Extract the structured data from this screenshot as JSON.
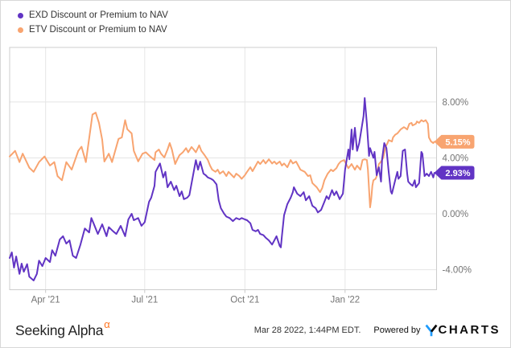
{
  "legend": {
    "items": [
      {
        "id": "exd",
        "label": "EXD Discount or Premium to NAV",
        "color": "#6134C4"
      },
      {
        "id": "etv",
        "label": "ETV Discount or Premium to NAV",
        "color": "#F8A470"
      }
    ]
  },
  "footer": {
    "brand": "Seeking Alpha",
    "brand_alpha": "α",
    "timestamp": "Mar 28 2022, 1:44PM EDT.",
    "powered_by": "Powered by",
    "provider": "YCHARTS",
    "provider_wordmark": "CHARTS",
    "provider_accent_color": "#1E9BFC"
  },
  "chart_data": {
    "type": "line",
    "title": "",
    "grid": true,
    "legend_position": "top-left",
    "x_axis": {
      "start_date": "2021-02-27",
      "end_date": "2022-03-26",
      "total_days": 392,
      "ticks": [
        {
          "label": "Apr '21",
          "day": 33
        },
        {
          "label": "Jul '21",
          "day": 124
        },
        {
          "label": "Oct '21",
          "day": 216
        },
        {
          "label": "Jan '22",
          "day": 308
        }
      ]
    },
    "y_axis": {
      "unit": "percent",
      "view_max": 11.9,
      "view_min": -5.43,
      "ticks": [
        {
          "label": "8.00%",
          "value": 8
        },
        {
          "label": "4.00%",
          "value": 4
        },
        {
          "label": "0.00%",
          "value": 0
        },
        {
          "label": "-4.00%",
          "value": -4
        }
      ]
    },
    "series": [
      {
        "id": "exd",
        "name": "EXD Discount or Premium to NAV",
        "color": "#6134C4",
        "last_value": 2.93,
        "last_value_label": "2.93%",
        "days": [
          0,
          2,
          4,
          6,
          9,
          11,
          13,
          16,
          18,
          22,
          25,
          27,
          30,
          33,
          37,
          39,
          42,
          46,
          49,
          52,
          55,
          58,
          61,
          65,
          69,
          73,
          75,
          77,
          81,
          85,
          89,
          91,
          95,
          98,
          102,
          106,
          109,
          112,
          114,
          118,
          121,
          124,
          128,
          130,
          133,
          134,
          138,
          141,
          143,
          145,
          148,
          151,
          153,
          156,
          158,
          160,
          163,
          165,
          169,
          171,
          173,
          175,
          178,
          180,
          182,
          185,
          187,
          190,
          192,
          194,
          197,
          199,
          202,
          205,
          208,
          211,
          213,
          216,
          218,
          221,
          223,
          226,
          228,
          230,
          233,
          235,
          238,
          241,
          243,
          245,
          248,
          249,
          250,
          252,
          255,
          258,
          260,
          261,
          264,
          267,
          270,
          272,
          275,
          278,
          281,
          283,
          286,
          289,
          291,
          293,
          296,
          298,
          300,
          303,
          306,
          308,
          311,
          312,
          314,
          315,
          317,
          319,
          321,
          323,
          325,
          326,
          328,
          330,
          331,
          334,
          335,
          337,
          339,
          341,
          342,
          344,
          346,
          348,
          350,
          351,
          354,
          356,
          357,
          359,
          361,
          363,
          365,
          366,
          368,
          370,
          372,
          373,
          376,
          378,
          379,
          381,
          383,
          385,
          387,
          389,
          390
        ],
        "values": [
          -3.16,
          -2.76,
          -3.85,
          -3.05,
          -4.3,
          -3.56,
          -4.14,
          -3.6,
          -4.5,
          -4.77,
          -4.3,
          -3.35,
          -3.74,
          -3.16,
          -3.45,
          -2.6,
          -3.0,
          -1.84,
          -1.6,
          -2.13,
          -1.9,
          -3.0,
          -3.16,
          -2.2,
          -1.05,
          -1.33,
          -0.3,
          -0.67,
          -1.44,
          -0.75,
          -1.6,
          -0.95,
          -1.25,
          -1.44,
          -0.86,
          -1.6,
          -0.4,
          0.0,
          -0.46,
          -0.3,
          -0.86,
          -0.6,
          0.86,
          1.15,
          2.0,
          3.0,
          3.6,
          2.6,
          3.0,
          1.9,
          2.3,
          1.7,
          2.0,
          1.26,
          1.6,
          1.05,
          1.15,
          1.33,
          3.0,
          3.84,
          3.16,
          3.73,
          2.87,
          2.76,
          2.6,
          2.5,
          2.4,
          2.1,
          0.97,
          0.4,
          0.0,
          -0.2,
          -0.3,
          -0.52,
          -0.3,
          -0.4,
          -0.3,
          -0.4,
          -0.46,
          -0.67,
          -1.15,
          -1.25,
          -1.15,
          -1.44,
          -1.53,
          -1.7,
          -1.9,
          -2.2,
          -1.9,
          -1.6,
          -2.3,
          -2.4,
          -1.6,
          -0.1,
          0.7,
          1.15,
          1.55,
          1.9,
          1.44,
          1.26,
          1.55,
          0.97,
          1.26,
          0.57,
          0.4,
          0.1,
          0.28,
          0.86,
          1.26,
          1.05,
          1.7,
          1.33,
          1.6,
          1.05,
          1.44,
          3.16,
          4.6,
          3.9,
          6.03,
          4.6,
          6.15,
          4.5,
          5.06,
          6.03,
          7.0,
          8.28,
          6.44,
          4.14,
          4.7,
          4.0,
          4.43,
          2.76,
          3.33,
          2.3,
          3.9,
          5.06,
          4.7,
          3.0,
          1.6,
          1.44,
          2.4,
          3.0,
          2.5,
          2.7,
          4.5,
          4.6,
          2.87,
          2.3,
          2.13,
          2.0,
          2.4,
          1.9,
          2.2,
          4.43,
          4.3,
          2.7,
          2.87,
          2.7,
          3.0,
          2.6,
          2.93
        ]
      },
      {
        "id": "etv",
        "name": "ETV Discount or Premium to NAV",
        "color": "#F8A470",
        "last_value": 5.15,
        "last_value_label": "5.15%",
        "days": [
          0,
          5,
          9,
          12,
          18,
          22,
          27,
          32,
          37,
          41,
          44,
          48,
          52,
          57,
          63,
          66,
          70,
          76,
          79,
          82,
          85,
          87,
          91,
          94,
          100,
          103,
          106,
          108,
          112,
          114,
          118,
          122,
          125,
          129,
          133,
          134,
          137,
          139,
          142,
          145,
          147,
          149,
          152,
          154,
          156,
          159,
          162,
          164,
          167,
          169,
          171,
          174,
          176,
          179,
          182,
          184,
          186,
          189,
          191,
          193,
          196,
          199,
          201,
          204,
          206,
          208,
          211,
          213,
          216,
          218,
          221,
          223,
          226,
          228,
          230,
          233,
          235,
          238,
          241,
          243,
          245,
          248,
          250,
          252,
          255,
          258,
          260,
          263,
          265,
          267,
          271,
          274,
          276,
          278,
          282,
          285,
          287,
          289,
          292,
          295,
          297,
          300,
          302,
          304,
          307,
          309,
          311,
          314,
          317,
          319,
          322,
          324,
          326,
          328,
          329,
          331,
          332,
          333,
          334,
          336,
          337,
          339,
          341,
          343,
          345,
          347,
          348,
          351,
          352,
          354,
          356,
          358,
          359,
          362,
          363,
          365,
          367,
          369,
          370,
          373,
          374,
          376,
          378,
          380,
          382,
          384,
          385,
          387,
          389,
          390
        ],
        "values": [
          4.1,
          4.5,
          3.7,
          4.3,
          3.3,
          3.0,
          3.7,
          4.1,
          3.45,
          3.7,
          2.7,
          2.4,
          3.7,
          3.16,
          4.5,
          4.8,
          3.7,
          7.1,
          7.24,
          6.5,
          5.3,
          3.74,
          4.3,
          3.7,
          5.36,
          5.46,
          6.7,
          6.05,
          5.75,
          4.5,
          3.75,
          4.3,
          4.4,
          4.1,
          3.85,
          4.4,
          4.6,
          4.3,
          4.03,
          4.6,
          5.06,
          4.6,
          3.56,
          3.9,
          4.2,
          4.4,
          4.7,
          4.4,
          4.78,
          4.6,
          4.4,
          4.9,
          4.5,
          4.2,
          3.85,
          3.45,
          3.16,
          3.0,
          3.16,
          2.87,
          3.05,
          2.7,
          3.0,
          2.76,
          2.6,
          2.87,
          2.7,
          2.5,
          2.76,
          3.0,
          3.33,
          3.05,
          3.45,
          3.74,
          3.56,
          3.85,
          3.6,
          3.9,
          3.6,
          3.74,
          3.56,
          3.74,
          3.45,
          3.6,
          3.33,
          3.85,
          3.6,
          3.74,
          3.45,
          3.16,
          3.0,
          2.7,
          2.76,
          2.2,
          1.9,
          1.55,
          1.84,
          2.4,
          2.87,
          3.16,
          3.05,
          3.26,
          3.56,
          3.74,
          3.85,
          3.56,
          3.26,
          3.56,
          3.16,
          3.45,
          3.16,
          3.85,
          3.9,
          3.85,
          3.16,
          0.46,
          1.05,
          2.0,
          2.4,
          2.5,
          2.7,
          3.56,
          3.74,
          4.0,
          4.78,
          5.06,
          5.27,
          5.17,
          5.46,
          5.66,
          5.75,
          5.94,
          6.03,
          6.2,
          6.15,
          6.03,
          6.44,
          6.5,
          6.32,
          6.44,
          6.6,
          6.5,
          6.7,
          6.6,
          6.7,
          6.44,
          5.46,
          5.17,
          5.06,
          5.15
        ]
      }
    ]
  }
}
